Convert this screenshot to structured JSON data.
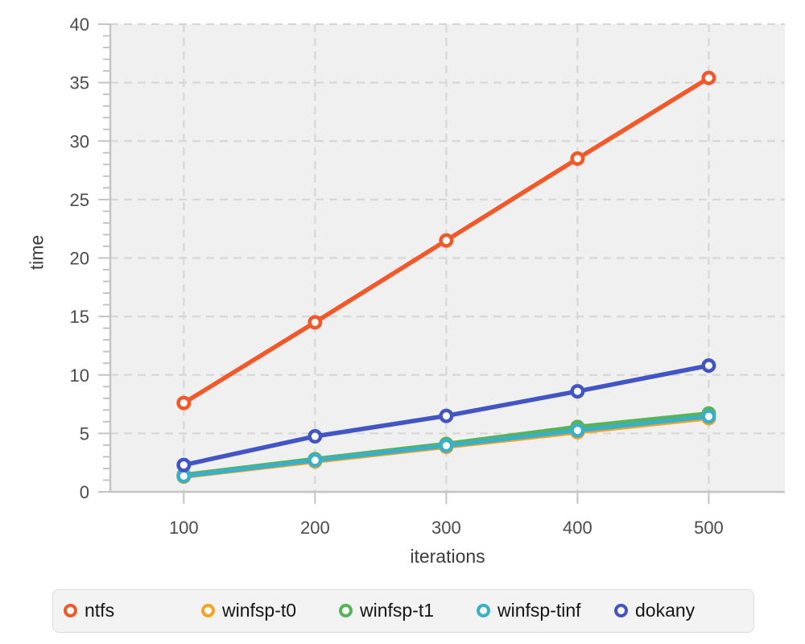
{
  "chart_data": {
    "type": "line",
    "title": "",
    "xlabel": "iterations",
    "ylabel": "time",
    "x": [
      100,
      200,
      300,
      400,
      500
    ],
    "series": [
      {
        "name": "ntfs",
        "color": "#F1592A",
        "values": [
          7.6,
          14.5,
          21.5,
          28.5,
          35.4
        ]
      },
      {
        "name": "winfsp-t0",
        "color": "#F6A320",
        "values": [
          1.3,
          2.6,
          3.85,
          5.1,
          6.3
        ]
      },
      {
        "name": "winfsp-t1",
        "color": "#56B457",
        "values": [
          1.45,
          2.8,
          4.1,
          5.55,
          6.7
        ]
      },
      {
        "name": "winfsp-tinf",
        "color": "#3BAEC8",
        "values": [
          1.35,
          2.7,
          3.95,
          5.25,
          6.45
        ]
      },
      {
        "name": "dokany",
        "color": "#4355C4",
        "values": [
          2.3,
          4.75,
          6.5,
          8.6,
          10.8
        ]
      }
    ],
    "ylim": [
      0,
      40
    ],
    "xlim": [
      44,
      558
    ],
    "yticks_major": [
      0,
      5,
      10,
      15,
      20,
      25,
      30,
      35,
      40
    ],
    "yticks_minor_step": 1,
    "xticks": [
      100,
      200,
      300,
      400,
      500
    ],
    "grid": "dashed",
    "legend_position": "bottom"
  },
  "theme": {
    "plot_bg": "#f0f0f0",
    "grid_color": "#d7d7d7",
    "axis_color": "#c4c4c4",
    "tick_label_color": "#4b4b4b",
    "axis_title_color": "#3c3c3c",
    "legend_bg": "#f3f3f3",
    "legend_border": "#dcdcdc",
    "legend_text": "#151515"
  }
}
